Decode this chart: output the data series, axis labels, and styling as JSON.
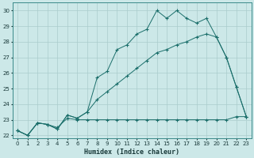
{
  "xlabel": "Humidex (Indice chaleur)",
  "background_color": "#cce8e8",
  "grid_color": "#aacccc",
  "line_color": "#1a6e6a",
  "x_values": [
    0,
    1,
    2,
    3,
    4,
    5,
    6,
    7,
    8,
    9,
    10,
    11,
    12,
    13,
    14,
    15,
    16,
    17,
    18,
    19,
    20,
    21,
    22,
    23
  ],
  "main_curve_y": [
    22.3,
    22.0,
    22.8,
    22.7,
    22.4,
    23.3,
    23.1,
    23.5,
    25.7,
    26.1,
    27.5,
    27.8,
    28.5,
    28.8,
    30.0,
    29.5,
    30.0,
    29.5,
    29.2,
    29.5,
    28.3,
    27.0,
    25.1,
    23.2
  ],
  "diagonal_y": [
    22.3,
    22.0,
    22.8,
    22.7,
    22.4,
    23.3,
    23.1,
    23.5,
    24.3,
    24.8,
    25.3,
    25.8,
    26.3,
    26.8,
    27.3,
    27.5,
    27.8,
    28.0,
    28.3,
    28.5,
    28.3,
    27.0,
    25.1,
    23.2
  ],
  "flat_y": [
    22.3,
    22.0,
    22.8,
    22.7,
    22.5,
    23.1,
    23.0,
    23.0,
    23.0,
    23.0,
    23.0,
    23.0,
    23.0,
    23.0,
    23.0,
    23.0,
    23.0,
    23.0,
    23.0,
    23.0,
    23.0,
    23.0,
    23.2,
    23.2
  ],
  "ylim": [
    21.8,
    30.5
  ],
  "xlim": [
    -0.5,
    23.5
  ],
  "yticks": [
    22,
    23,
    24,
    25,
    26,
    27,
    28,
    29,
    30
  ],
  "xticks": [
    0,
    1,
    2,
    3,
    4,
    5,
    6,
    7,
    8,
    9,
    10,
    11,
    12,
    13,
    14,
    15,
    16,
    17,
    18,
    19,
    20,
    21,
    22,
    23
  ]
}
